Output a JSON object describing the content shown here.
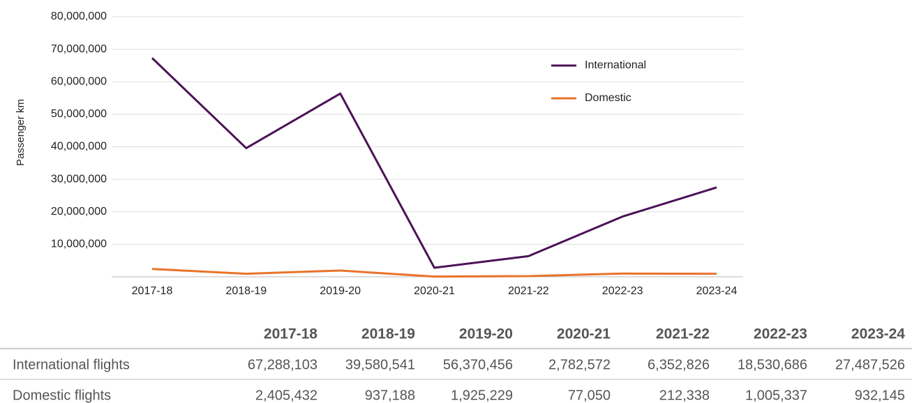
{
  "chart_data": {
    "type": "line",
    "y_label": "Passenger km",
    "categories": [
      "2017-18",
      "2018-19",
      "2019-20",
      "2020-21",
      "2021-22",
      "2022-23",
      "2023-24"
    ],
    "series": [
      {
        "name": "International",
        "color": "#4b1256",
        "values": [
          67288103,
          39580541,
          56370456,
          2782572,
          6352826,
          18530686,
          27487526
        ]
      },
      {
        "name": "Domestic",
        "color": "#e8732a",
        "values": [
          2405432,
          937188,
          1925229,
          77050,
          212338,
          1005337,
          932145
        ]
      }
    ],
    "ylim": [
      0,
      80000000
    ],
    "yticks": [
      {
        "value": 10000000,
        "label": "10,000,000"
      },
      {
        "value": 20000000,
        "label": "20,000,000"
      },
      {
        "value": 30000000,
        "label": "30,000,000"
      },
      {
        "value": 40000000,
        "label": "40,000,000"
      },
      {
        "value": 50000000,
        "label": "50,000,000"
      },
      {
        "value": 60000000,
        "label": "60,000,000"
      },
      {
        "value": 70000000,
        "label": "70,000,000"
      },
      {
        "value": 80000000,
        "label": "80,000,000"
      }
    ],
    "grid": true
  },
  "table": {
    "header": [
      "2017-18",
      "2018-19",
      "2019-20",
      "2020-21",
      "2021-22",
      "2022-23",
      "2023-24"
    ],
    "rows": [
      {
        "label": "International flights",
        "values": [
          "67,288,103",
          "39,580,541",
          "56,370,456",
          "2,782,572",
          "6,352,826",
          "18,530,686",
          "27,487,526"
        ]
      },
      {
        "label": "Domestic flights",
        "values": [
          "2,405,432",
          "937,188",
          "1,925,229",
          "77,050",
          "212,338",
          "1,005,337",
          "932,145"
        ]
      }
    ]
  }
}
